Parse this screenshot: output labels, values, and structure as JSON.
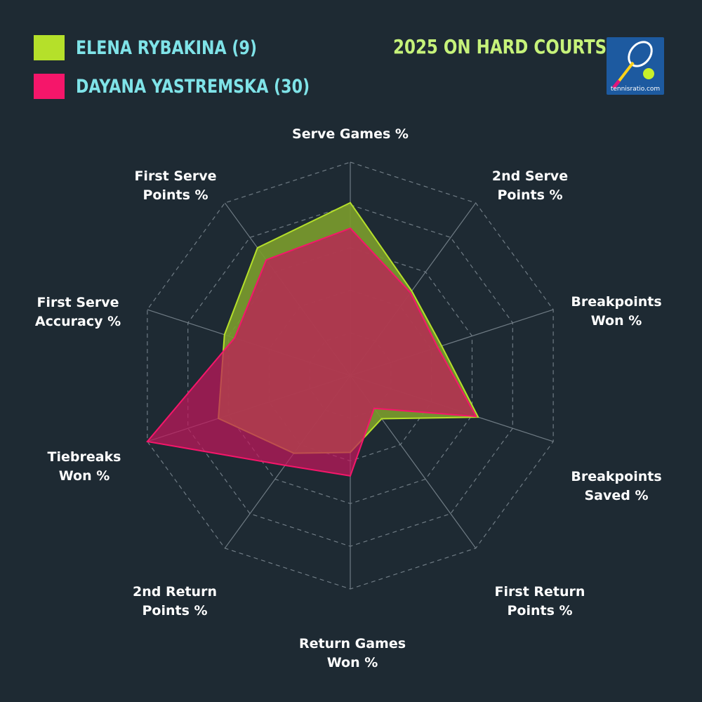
{
  "legend": {
    "items": [
      {
        "label": "ELENA RYBAKINA (9)",
        "color": "#b5e02a"
      },
      {
        "label": "DAYANA YASTREMSKA (30)",
        "color": "#f5166a"
      }
    ]
  },
  "subtitle": "2025 ON HARD COURTS",
  "logo": {
    "text": "tennisratio.com",
    "icon": "tennis-racket-ball-icon"
  },
  "chart_data": {
    "type": "radar",
    "title": "",
    "axes": [
      {
        "line1": "Serve Games %",
        "line2": ""
      },
      {
        "line1": "2nd Serve",
        "line2": "Points %"
      },
      {
        "line1": "Breakpoints",
        "line2": "Won %"
      },
      {
        "line1": "Breakpoints",
        "line2": "Saved %"
      },
      {
        "line1": "First Return",
        "line2": "Points %"
      },
      {
        "line1": "Return Games",
        "line2": "Won %"
      },
      {
        "line1": "2nd Return",
        "line2": "Points %"
      },
      {
        "line1": "Tiebreaks",
        "line2": "Won %"
      },
      {
        "line1": "First Serve",
        "line2": "Accuracy %"
      },
      {
        "line1": "First Serve",
        "line2": "Points %"
      }
    ],
    "range": [
      0,
      1
    ],
    "rings": 5,
    "grid": true,
    "series": [
      {
        "name": "ELENA RYBAKINA (9)",
        "color": "#b5e02a",
        "fill": "#7a9a2c",
        "values": [
          0.81,
          0.49,
          0.45,
          0.63,
          0.25,
          0.36,
          0.45,
          0.65,
          0.62,
          0.74
        ]
      },
      {
        "name": "DAYANA YASTREMSKA (30)",
        "color": "#f5166a",
        "fill": "#c2185b",
        "values": [
          0.69,
          0.48,
          0.43,
          0.62,
          0.19,
          0.47,
          0.52,
          1.0,
          0.57,
          0.67
        ]
      }
    ]
  }
}
